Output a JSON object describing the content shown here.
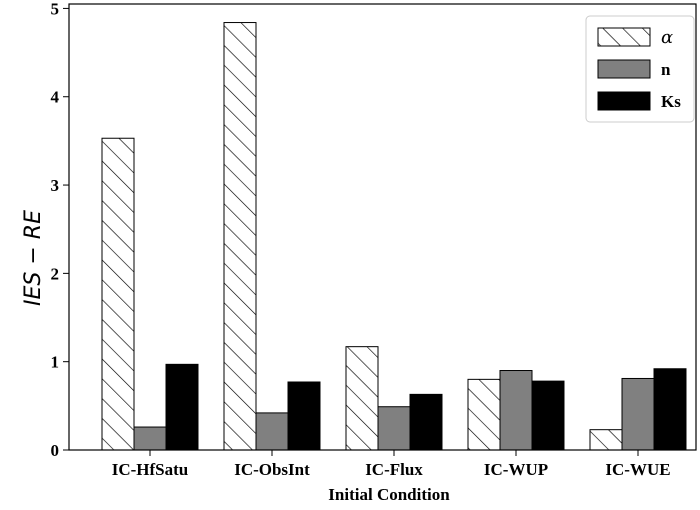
{
  "chart_data": {
    "type": "bar",
    "title": "",
    "xlabel": "Initial Condition",
    "ylabel": "IES − RE",
    "categories": [
      "IC-HfSatu",
      "IC-ObsInt",
      "IC-Flux",
      "IC-WUP",
      "IC-WUE"
    ],
    "series": [
      {
        "name": "α",
        "values": [
          3.53,
          4.84,
          1.17,
          0.8,
          0.23
        ],
        "fill": "#ffffff",
        "pattern": "hatch"
      },
      {
        "name": "n",
        "values": [
          0.26,
          0.42,
          0.49,
          0.9,
          0.81
        ],
        "fill": "#808080",
        "pattern": "solid"
      },
      {
        "name": "Ks",
        "values": [
          0.97,
          0.77,
          0.63,
          0.78,
          0.92
        ],
        "fill": "#000000",
        "pattern": "solid"
      }
    ],
    "ylim": [
      0,
      5.05
    ],
    "yticks": [
      "0",
      "1",
      "2",
      "3",
      "4",
      "5"
    ],
    "ytick_values": [
      0,
      1,
      2,
      3,
      4,
      5
    ],
    "grid": false,
    "legend_position": "top-right"
  }
}
